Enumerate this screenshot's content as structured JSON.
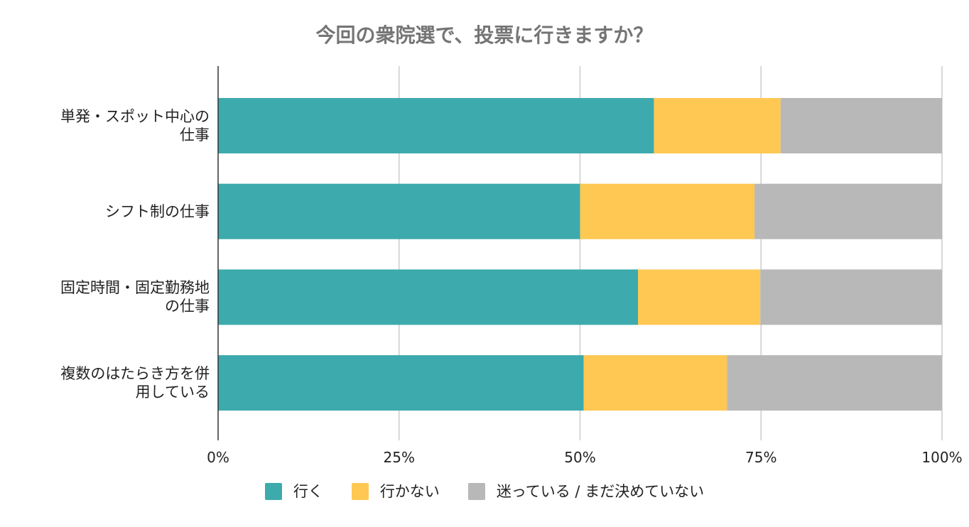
{
  "chart_data": {
    "type": "bar",
    "orientation": "horizontal",
    "stacking": "percent",
    "title": "今回の衆院選で、投票に行きますか？",
    "xlabel": "",
    "ylabel": "",
    "categories": [
      "単発・スポット中心の仕事",
      "シフト制の仕事",
      "固定時間・固定勤務地の仕事",
      "複数のはたらき方を併用している"
    ],
    "series": [
      {
        "name": "行く",
        "color": "#3DAAAD",
        "values": [
          60.2,
          50.0,
          58.0,
          50.5
        ]
      },
      {
        "name": "行かない",
        "color": "#FEC852",
        "values": [
          17.5,
          24.1,
          16.9,
          19.8
        ]
      },
      {
        "name": "迷っている / まだ決めていない",
        "color": "#B8B8B8",
        "values": [
          22.3,
          25.9,
          25.1,
          29.7
        ]
      }
    ],
    "xlim": [
      0,
      100
    ],
    "xtick_values": [
      0,
      25,
      50,
      75,
      100
    ],
    "xtick_labels": [
      "0%",
      "25%",
      "50%",
      "75%",
      "100%"
    ],
    "grid": true,
    "legend": "bottom-center"
  }
}
